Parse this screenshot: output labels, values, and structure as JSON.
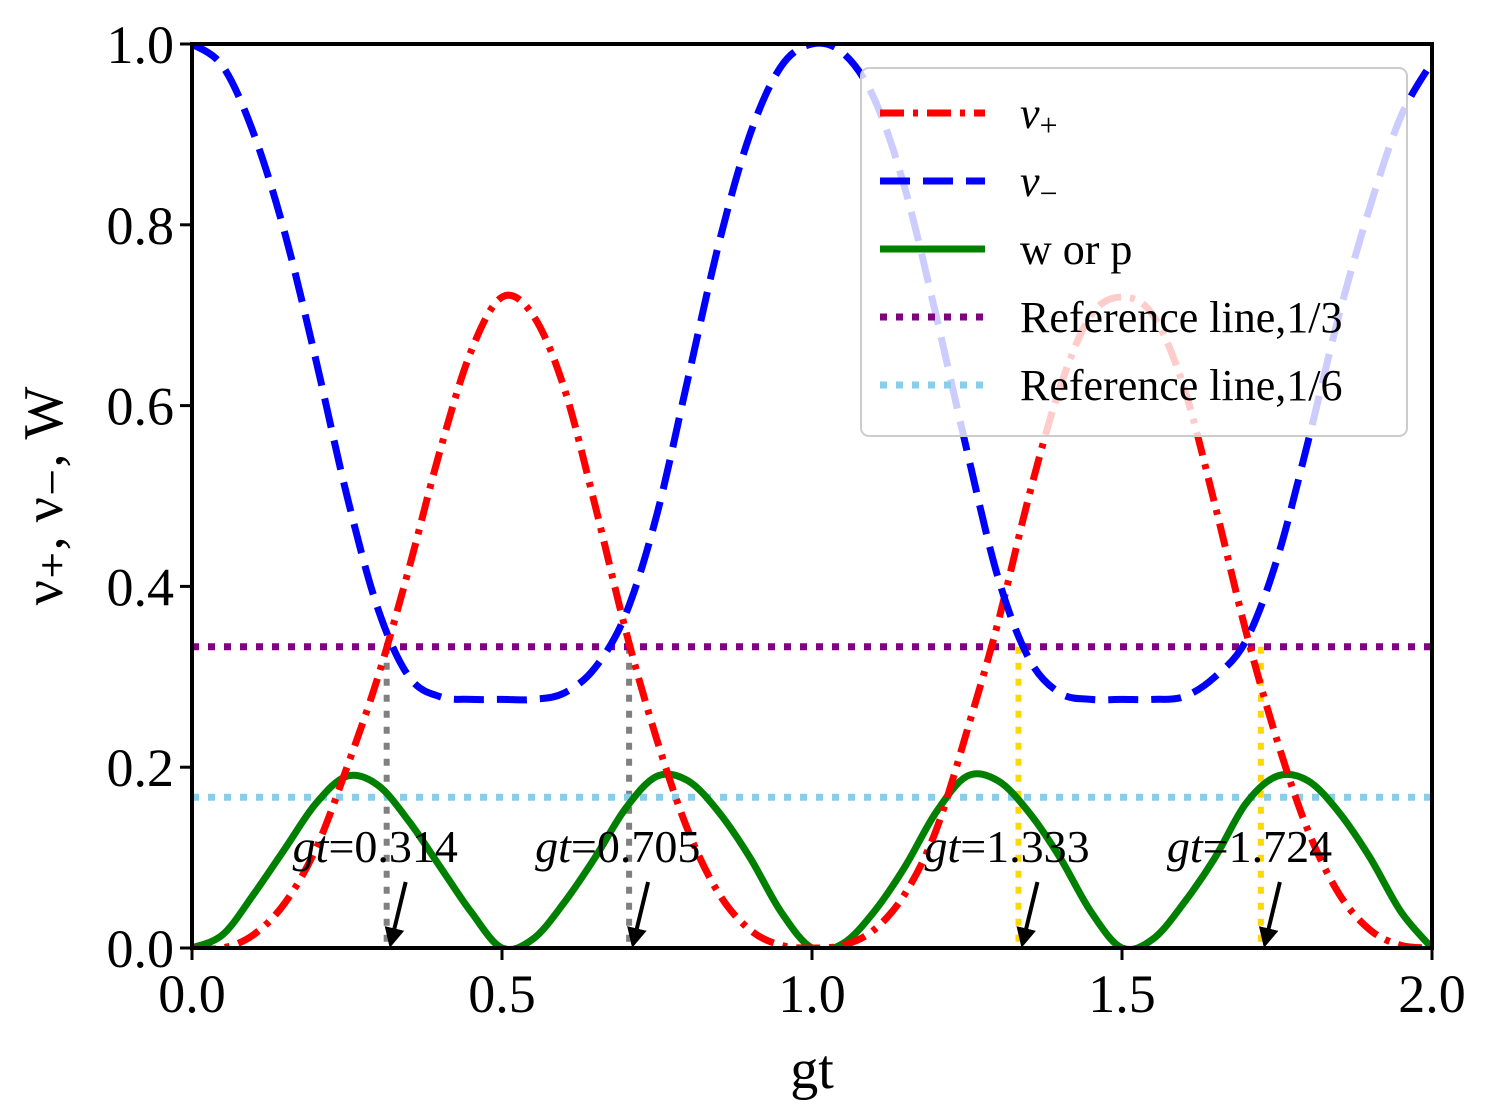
{
  "chart_data": {
    "type": "line",
    "xlabel": "gt",
    "ylabel": "ν₊, ν₋, W",
    "xlim": [
      0.0,
      2.0
    ],
    "ylim": [
      0.0,
      1.0
    ],
    "xticks": [
      0.0,
      0.5,
      1.0,
      1.5,
      2.0
    ],
    "xtick_labels": [
      "0.0",
      "0.5",
      "1.0",
      "1.5",
      "2.0"
    ],
    "yticks": [
      0.0,
      0.2,
      0.4,
      0.6,
      0.8,
      1.0
    ],
    "ytick_labels": [
      "0.0",
      "0.2",
      "0.4",
      "0.6",
      "0.8",
      "1.0"
    ],
    "legend_position": "top-right",
    "series": [
      {
        "name": "ν+",
        "legend_main": "ν",
        "legend_sub": "+",
        "color": "#ff0000",
        "style": "dashdot",
        "x": [
          0.0,
          0.05,
          0.1,
          0.15,
          0.2,
          0.25,
          0.3,
          0.35,
          0.4,
          0.45,
          0.5,
          0.55,
          0.6,
          0.65,
          0.7,
          0.75,
          0.8,
          0.85,
          0.9,
          0.95,
          1.0,
          1.05,
          1.1,
          1.15,
          1.2,
          1.25,
          1.3,
          1.35,
          1.4,
          1.45,
          1.5,
          1.55,
          1.6,
          1.65,
          1.7,
          1.75,
          1.8,
          1.85,
          1.9,
          1.95,
          2.0
        ],
        "values": [
          0.0,
          0.0,
          0.015,
          0.05,
          0.11,
          0.2,
          0.3,
          0.42,
          0.55,
          0.66,
          0.72,
          0.7,
          0.62,
          0.49,
          0.35,
          0.23,
          0.13,
          0.06,
          0.02,
          0.003,
          0.0,
          0.003,
          0.02,
          0.06,
          0.13,
          0.24,
          0.36,
          0.5,
          0.62,
          0.7,
          0.72,
          0.7,
          0.62,
          0.49,
          0.35,
          0.23,
          0.13,
          0.06,
          0.02,
          0.003,
          0.0
        ]
      },
      {
        "name": "ν−",
        "legend_main": "ν",
        "legend_sub": "−",
        "color": "#0000ff",
        "style": "dashed",
        "x": [
          0.0,
          0.05,
          0.1,
          0.15,
          0.2,
          0.25,
          0.3,
          0.35,
          0.4,
          0.45,
          0.5,
          0.55,
          0.6,
          0.65,
          0.7,
          0.75,
          0.8,
          0.85,
          0.9,
          0.95,
          1.0,
          1.05,
          1.1,
          1.15,
          1.2,
          1.25,
          1.3,
          1.35,
          1.4,
          1.45,
          1.5,
          1.55,
          1.6,
          1.65,
          1.7,
          1.75,
          1.8,
          1.85,
          1.9,
          1.95,
          2.0
        ],
        "values": [
          1.0,
          0.975,
          0.9,
          0.79,
          0.65,
          0.5,
          0.375,
          0.3,
          0.278,
          0.275,
          0.275,
          0.275,
          0.282,
          0.31,
          0.37,
          0.48,
          0.63,
          0.78,
          0.9,
          0.975,
          1.0,
          0.99,
          0.94,
          0.84,
          0.7,
          0.55,
          0.41,
          0.32,
          0.282,
          0.275,
          0.275,
          0.275,
          0.278,
          0.3,
          0.34,
          0.43,
          0.56,
          0.7,
          0.82,
          0.92,
          0.98
        ]
      },
      {
        "name": "w or p",
        "color": "#008000",
        "style": "solid",
        "x": [
          0.0,
          0.05,
          0.1,
          0.15,
          0.2,
          0.25,
          0.3,
          0.35,
          0.4,
          0.45,
          0.5,
          0.55,
          0.6,
          0.65,
          0.7,
          0.75,
          0.8,
          0.85,
          0.9,
          0.95,
          1.0,
          1.05,
          1.1,
          1.15,
          1.2,
          1.25,
          1.3,
          1.35,
          1.4,
          1.45,
          1.5,
          1.55,
          1.6,
          1.65,
          1.7,
          1.75,
          1.8,
          1.85,
          1.9,
          1.95,
          2.0
        ],
        "values": [
          0.0,
          0.015,
          0.06,
          0.11,
          0.16,
          0.19,
          0.18,
          0.14,
          0.09,
          0.04,
          0.0,
          0.01,
          0.05,
          0.1,
          0.155,
          0.19,
          0.185,
          0.15,
          0.1,
          0.04,
          0.0,
          0.005,
          0.04,
          0.09,
          0.15,
          0.19,
          0.185,
          0.15,
          0.1,
          0.04,
          0.0,
          0.01,
          0.05,
          0.1,
          0.16,
          0.19,
          0.185,
          0.15,
          0.1,
          0.04,
          0.0
        ]
      },
      {
        "name": "Reference line,1/3",
        "color": "#800080",
        "style": "dotted",
        "x": [
          0.0,
          2.0
        ],
        "values": [
          0.3333,
          0.3333
        ]
      },
      {
        "name": "Reference line,1/6",
        "color": "#87ceeb",
        "style": "dotted",
        "x": [
          0.0,
          2.0
        ],
        "values": [
          0.1667,
          0.1667
        ]
      }
    ],
    "markers": [
      {
        "x": 0.314,
        "y_top": 0.3333,
        "color": "#808080",
        "label_prefix": "gt",
        "label_value": "=0.314"
      },
      {
        "x": 0.705,
        "y_top": 0.3333,
        "color": "#808080",
        "label_prefix": "gt",
        "label_value": "=0.705"
      },
      {
        "x": 1.333,
        "y_top": 0.3333,
        "color": "#ffd700",
        "label_prefix": "gt",
        "label_value": "=1.333"
      },
      {
        "x": 1.724,
        "y_top": 0.3333,
        "color": "#ffd700",
        "label_prefix": "gt",
        "label_value": "=1.724"
      }
    ]
  }
}
